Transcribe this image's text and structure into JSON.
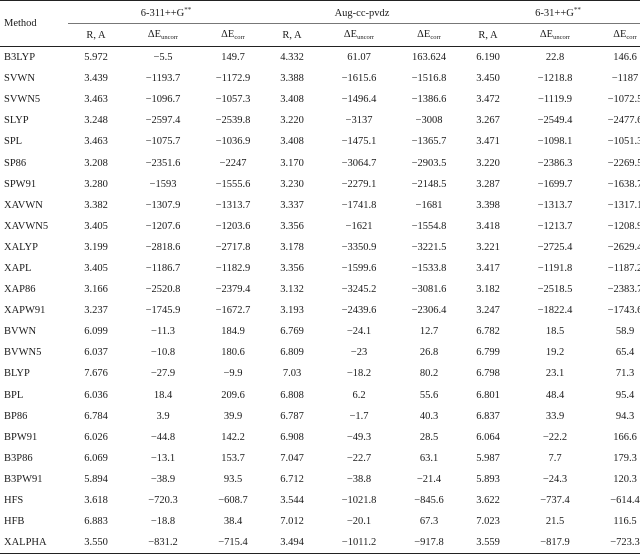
{
  "header": {
    "method": "Method",
    "groups": [
      {
        "base": "6-311++G",
        "sup": "**"
      },
      {
        "base": "Aug-cc-pvdz",
        "sup": ""
      },
      {
        "base": "6-31++G",
        "sup": "**"
      }
    ],
    "r_label": "R, A",
    "delta": "ΔE",
    "uncorr_sub": "uncorr",
    "corr_sub": "corr"
  },
  "rows": [
    [
      "B3LYP",
      "5.972",
      "−5.5",
      "149.7",
      "4.332",
      "61.07",
      "163.624",
      "6.190",
      "22.8",
      "146.6"
    ],
    [
      "SVWN",
      "3.439",
      "−1193.7",
      "−1172.9",
      "3.388",
      "−1615.6",
      "−1516.8",
      "3.450",
      "−1218.8",
      "−1187"
    ],
    [
      "SVWN5",
      "3.463",
      "−1096.7",
      "−1057.3",
      "3.408",
      "−1496.4",
      "−1386.6",
      "3.472",
      "−1119.9",
      "−1072.5"
    ],
    [
      "SLYP",
      "3.248",
      "−2597.4",
      "−2539.8",
      "3.220",
      "−3137",
      "−3008",
      "3.267",
      "−2549.4",
      "−2477.6"
    ],
    [
      "SPL",
      "3.463",
      "−1075.7",
      "−1036.9",
      "3.408",
      "−1475.1",
      "−1365.7",
      "3.471",
      "−1098.1",
      "−1051.3"
    ],
    [
      "SP86",
      "3.208",
      "−2351.6",
      "−2247",
      "3.170",
      "−3064.7",
      "−2903.5",
      "3.220",
      "−2386.3",
      "−2269.5"
    ],
    [
      "SPW91",
      "3.280",
      "−1593",
      "−1555.6",
      "3.230",
      "−2279.1",
      "−2148.5",
      "3.287",
      "−1699.7",
      "−1638.7"
    ],
    [
      "XAVWN",
      "3.382",
      "−1307.9",
      "−1313.7",
      "3.337",
      "−1741.8",
      "−1681",
      "3.398",
      "−1313.7",
      "−1317.1"
    ],
    [
      "XAVWN5",
      "3.405",
      "−1207.6",
      "−1203.6",
      "3.356",
      "−1621",
      "−1554.8",
      "3.418",
      "−1213.7",
      "−1208.9"
    ],
    [
      "XALYP",
      "3.199",
      "−2818.6",
      "−2717.8",
      "3.178",
      "−3350.9",
      "−3221.5",
      "3.221",
      "−2725.4",
      "−2629.4"
    ],
    [
      "XAPL",
      "3.405",
      "−1186.7",
      "−1182.9",
      "3.356",
      "−1599.6",
      "−1533.8",
      "3.417",
      "−1191.8",
      "−1187.2"
    ],
    [
      "XAP86",
      "3.166",
      "−2520.8",
      "−2379.4",
      "3.132",
      "−3245.2",
      "−3081.6",
      "3.182",
      "−2518.5",
      "−2383.7"
    ],
    [
      "XAPW91",
      "3.237",
      "−1745.9",
      "−1672.7",
      "3.193",
      "−2439.6",
      "−2306.4",
      "3.247",
      "−1822.4",
      "−1743.6"
    ],
    [
      "BVWN",
      "6.099",
      "−11.3",
      "184.9",
      "6.769",
      "−24.1",
      "12.7",
      "6.782",
      "18.5",
      "58.9"
    ],
    [
      "BVWN5",
      "6.037",
      "−10.8",
      "180.6",
      "6.809",
      "−23",
      "26.8",
      "6.799",
      "19.2",
      "65.4"
    ],
    [
      "BLYP",
      "7.676",
      "−27.9",
      "−9.9",
      "7.03",
      "−18.2",
      "80.2",
      "6.798",
      "23.1",
      "71.3"
    ],
    [
      "BPL",
      "6.036",
      "18.4",
      "209.6",
      "6.808",
      "6.2",
      "55.6",
      "6.801",
      "48.4",
      "95.4"
    ],
    [
      "BP86",
      "6.784",
      "3.9",
      "39.9",
      "6.787",
      "−1.7",
      "40.3",
      "6.837",
      "33.9",
      "94.3"
    ],
    [
      "BPW91",
      "6.026",
      "−44.8",
      "142.2",
      "6.908",
      "−49.3",
      "28.5",
      "6.064",
      "−22.2",
      "166.6"
    ],
    [
      "B3P86",
      "6.069",
      "−13.1",
      "153.7",
      "7.047",
      "−22.7",
      "63.1",
      "5.987",
      "7.7",
      "179.3"
    ],
    [
      "B3PW91",
      "5.894",
      "−38.9",
      "93.5",
      "6.712",
      "−38.8",
      "−21.4",
      "5.893",
      "−24.3",
      "120.3"
    ],
    [
      "HFS",
      "3.618",
      "−720.3",
      "−608.7",
      "3.544",
      "−1021.8",
      "−845.6",
      "3.622",
      "−737.4",
      "−614.4"
    ],
    [
      "HFB",
      "6.883",
      "−18.8",
      "38.4",
      "7.012",
      "−20.1",
      "67.3",
      "7.023",
      "21.5",
      "116.5"
    ],
    [
      "XALPHA",
      "3.550",
      "−831.2",
      "−715.4",
      "3.494",
      "−1011.2",
      "−917.8",
      "3.559",
      "−817.9",
      "−723.3"
    ]
  ]
}
